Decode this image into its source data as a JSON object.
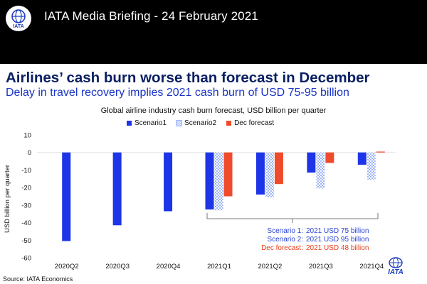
{
  "video": {
    "title": "IATA Media Briefing - 24 February 2021",
    "channel_logo_text": "IATA"
  },
  "slide": {
    "title": "Airlines’ cash burn worse than forecast in December",
    "subtitle": "Delay in travel recovery implies 2021 cash burn of USD 75-95 billion",
    "source": "Source: IATA Economics",
    "logo_text": "IATA"
  },
  "colors": {
    "title": "#0a1f63",
    "subtitle": "#1a34c8",
    "scenario1": "#1d35e6",
    "scenario2": "#9fb6f5",
    "dec_forecast": "#f04a2c",
    "annot_blue": "#2a44d6",
    "annot_red": "#e8401c"
  },
  "annotations": [
    {
      "label": "Scenario 1:",
      "value": "2021 USD 75 billion",
      "color": "annot_blue"
    },
    {
      "label": "Scenario 2:",
      "value": "2021 USD 95 billion",
      "color": "annot_blue"
    },
    {
      "label": "Dec forecast:",
      "value": "2021 USD 48 billion",
      "color": "annot_red"
    }
  ],
  "chart_data": {
    "type": "bar",
    "title": "Global airline industry cash burn forecast, USD billion per quarter",
    "ylabel": "USD billion per quarter",
    "xlabel": "",
    "ylim": [
      -60,
      10
    ],
    "yticks": [
      10,
      0,
      -10,
      -20,
      -30,
      -40,
      -50,
      -60
    ],
    "categories": [
      "2020Q2",
      "2020Q3",
      "2020Q4",
      "2021Q1",
      "2021Q2",
      "2021Q3",
      "2021Q4"
    ],
    "legend_position": "top",
    "series": [
      {
        "name": "Scenario1",
        "values": [
          -50.5,
          -41.5,
          -33.5,
          -32.5,
          -24,
          -11.5,
          -7
        ],
        "color_key": "scenario1"
      },
      {
        "name": "Scenario2",
        "values": [
          null,
          null,
          null,
          -33,
          -25.5,
          -20.5,
          -15.5
        ],
        "color_key": "scenario2"
      },
      {
        "name": "Dec forecast",
        "values": [
          null,
          null,
          null,
          -25,
          -18,
          -6,
          0.5
        ],
        "color_key": "dec_forecast"
      }
    ]
  }
}
